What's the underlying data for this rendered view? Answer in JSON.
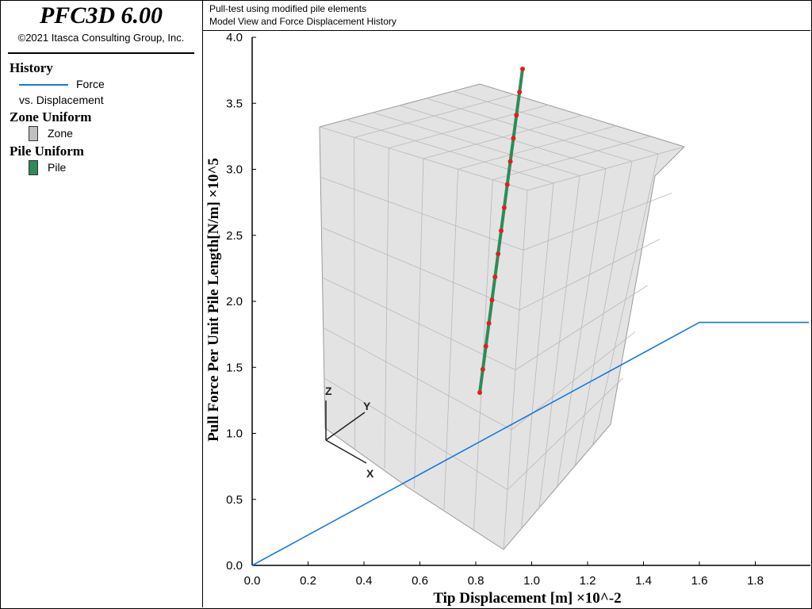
{
  "sidebar": {
    "app_title": "PFC3D 6.00",
    "copyright": "©2021 Itasca Consulting Group, Inc.",
    "legend": {
      "history": {
        "heading": "History",
        "line_label": "Force",
        "line_label_2": "vs. Displacement",
        "color": "#1a78d8"
      },
      "zone": {
        "heading": "Zone Uniform",
        "item": "Zone",
        "color": "#c0c0c0"
      },
      "pile": {
        "heading": "Pile Uniform",
        "item": "Pile",
        "color": "#2e8b57"
      }
    }
  },
  "header": {
    "line1": "Pull-test using modified pile elements",
    "line2": "Model View and Force Displacement History"
  },
  "axes_triad": {
    "x": "X",
    "y": "Y",
    "z": "Z"
  },
  "chart_data": {
    "type": "line",
    "title": "",
    "xlabel": "Tip Displacement [m] ×10^-2",
    "ylabel": "Pull Force Per Unit Pile Length[N/m] ×10^5",
    "xlim": [
      0,
      2.0
    ],
    "ylim": [
      0,
      4.0
    ],
    "xticks": [
      "0.0",
      "0.2",
      "0.4",
      "0.6",
      "0.8",
      "1.0",
      "1.2",
      "1.4",
      "1.6",
      "1.8"
    ],
    "yticks": [
      "0.0",
      "0.5",
      "1.0",
      "1.5",
      "2.0",
      "2.5",
      "3.0",
      "3.5",
      "4.0"
    ],
    "series": [
      {
        "name": "Force",
        "color": "#1a78d8",
        "x": [
          0.0,
          1.6,
          2.0
        ],
        "y": [
          0.0,
          1.84,
          1.84
        ]
      }
    ],
    "grid": false,
    "legend": "left-panel"
  }
}
